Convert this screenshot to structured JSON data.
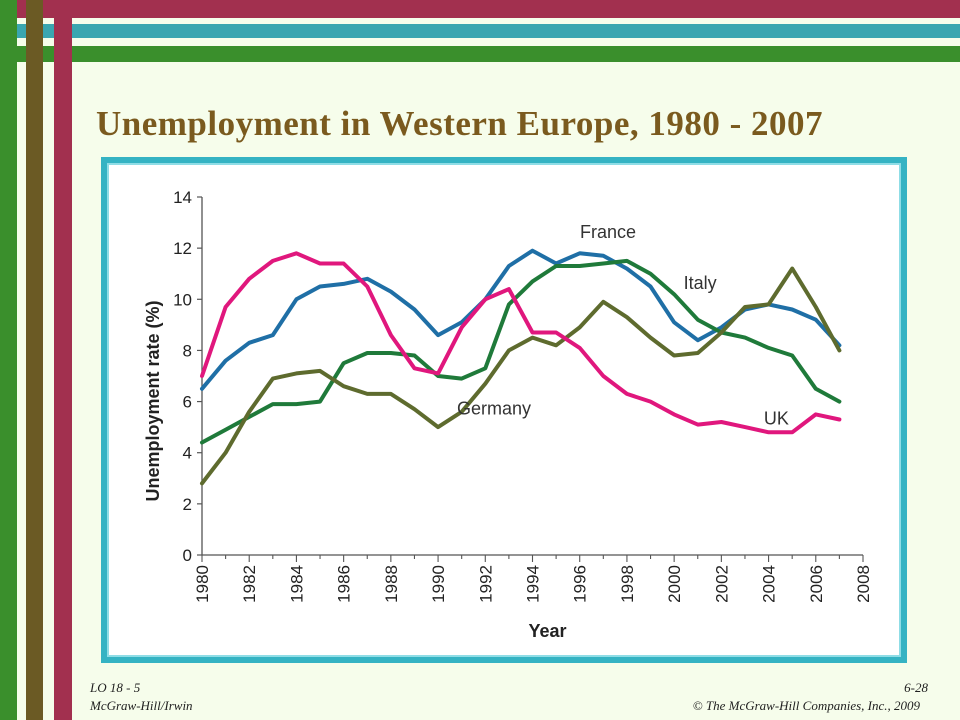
{
  "slide": {
    "title": "Unemployment in Western Europe, 1980 - 2007"
  },
  "footer": {
    "lo": "LO 18 - 5",
    "publisher": "McGraw-Hill/Irwin",
    "page": "6-28",
    "copyright": "© The McGraw-Hill Companies, Inc., 2009"
  },
  "colors": {
    "frame": "#35b3c3",
    "France": "#1f6fa6",
    "Italy": "#1f7a3a",
    "Germany": "#5e6b2e",
    "UK": "#e0177d"
  },
  "chart_data": {
    "type": "line",
    "title": "",
    "xlabel": "Year",
    "ylabel": "Unemployment rate (%)",
    "xlim": [
      1980,
      2008
    ],
    "ylim": [
      0,
      14
    ],
    "x_ticks": [
      1980,
      1982,
      1984,
      1986,
      1988,
      1990,
      1992,
      1994,
      1996,
      1998,
      2000,
      2002,
      2004,
      2006,
      2008
    ],
    "y_ticks": [
      0,
      2,
      4,
      6,
      8,
      10,
      12,
      14
    ],
    "grid": false,
    "legend": "inline labels",
    "x": [
      1980,
      1981,
      1982,
      1983,
      1984,
      1985,
      1986,
      1987,
      1988,
      1989,
      1990,
      1991,
      1992,
      1993,
      1994,
      1995,
      1996,
      1997,
      1998,
      1999,
      2000,
      2001,
      2002,
      2003,
      2004,
      2005,
      2006,
      2007
    ],
    "series": [
      {
        "name": "France",
        "values": [
          6.5,
          7.6,
          8.3,
          8.6,
          10.0,
          10.5,
          10.6,
          10.8,
          10.3,
          9.6,
          8.6,
          9.1,
          10.0,
          11.3,
          11.9,
          11.4,
          11.8,
          11.7,
          11.2,
          10.5,
          9.1,
          8.4,
          8.9,
          9.6,
          9.8,
          9.6,
          9.2,
          8.2
        ]
      },
      {
        "name": "Italy",
        "values": [
          4.4,
          4.9,
          5.4,
          5.9,
          5.9,
          6.0,
          7.5,
          7.9,
          7.9,
          7.8,
          7.0,
          6.9,
          7.3,
          9.8,
          10.7,
          11.3,
          11.3,
          11.4,
          11.5,
          11.0,
          10.2,
          9.2,
          8.7,
          8.5,
          8.1,
          7.8,
          6.5,
          6.0
        ]
      },
      {
        "name": "Germany",
        "values": [
          2.8,
          4.0,
          5.6,
          6.9,
          7.1,
          7.2,
          6.6,
          6.3,
          6.3,
          5.7,
          5.0,
          5.6,
          6.7,
          8.0,
          8.5,
          8.2,
          8.9,
          9.9,
          9.3,
          8.5,
          7.8,
          7.9,
          8.7,
          9.7,
          9.8,
          11.2,
          9.7,
          8.0
        ]
      },
      {
        "name": "UK",
        "values": [
          7.0,
          9.7,
          10.8,
          11.5,
          11.8,
          11.4,
          11.4,
          10.5,
          8.6,
          7.3,
          7.1,
          8.9,
          10.0,
          10.4,
          8.7,
          8.7,
          8.1,
          7.0,
          6.3,
          6.0,
          5.5,
          5.1,
          5.2,
          5.0,
          4.8,
          4.8,
          5.5,
          5.3
        ]
      }
    ]
  }
}
